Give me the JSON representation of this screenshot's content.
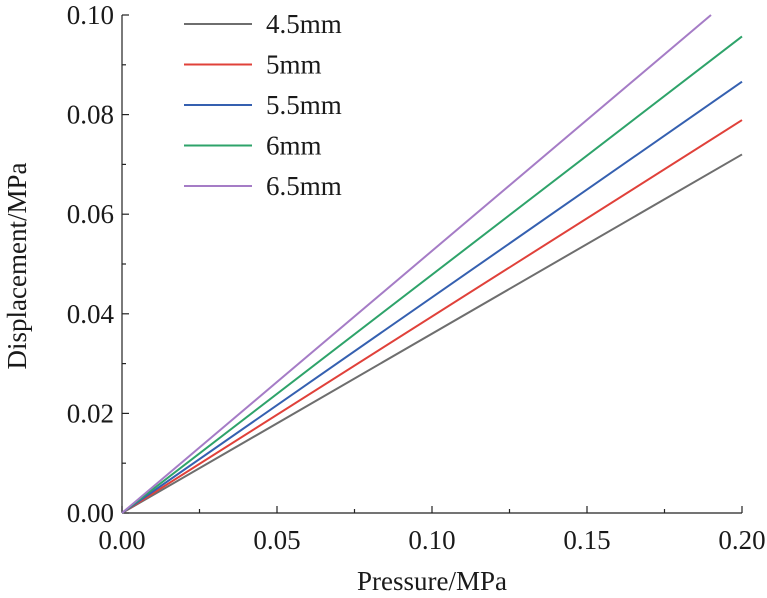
{
  "chart_data": {
    "type": "line",
    "title": "",
    "xlabel": "Pressure/MPa",
    "ylabel": "Displacement/MPa",
    "xlim": [
      0,
      0.2
    ],
    "ylim": [
      0,
      0.1
    ],
    "x_ticks": [
      0,
      0.05,
      0.1,
      0.15,
      0.2
    ],
    "x_tick_labels": [
      "0.00",
      "0.05",
      "0.10",
      "0.15",
      "0.20"
    ],
    "y_ticks": [
      0,
      0.02,
      0.04,
      0.06,
      0.08,
      0.1
    ],
    "y_tick_labels": [
      "0.00",
      "0.02",
      "0.04",
      "0.06",
      "0.08",
      "0.10"
    ],
    "grid": false,
    "legend_position": "top-left",
    "series": [
      {
        "name": "4.5mm",
        "color": "#6e6e6e",
        "x": [
          0,
          0.2
        ],
        "y": [
          0,
          0.072
        ]
      },
      {
        "name": "5mm",
        "color": "#e0413a",
        "x": [
          0,
          0.2
        ],
        "y": [
          0,
          0.0789
        ]
      },
      {
        "name": "5.5mm",
        "color": "#3560b0",
        "x": [
          0,
          0.2
        ],
        "y": [
          0,
          0.0866
        ]
      },
      {
        "name": "6mm",
        "color": "#2ea36a",
        "x": [
          0,
          0.2
        ],
        "y": [
          0,
          0.0957
        ]
      },
      {
        "name": "6.5mm",
        "color": "#a57cc6",
        "x": [
          0,
          0.19
        ],
        "y": [
          0,
          0.1
        ]
      }
    ]
  }
}
